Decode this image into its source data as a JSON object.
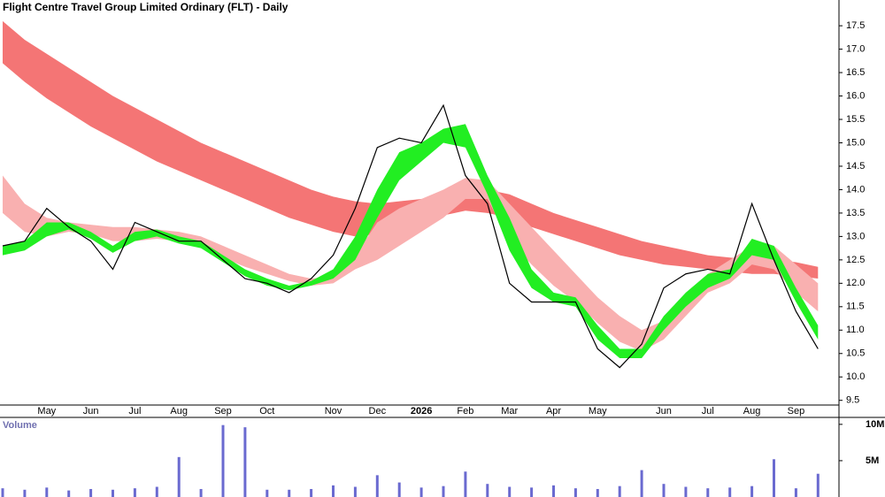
{
  "chart_data": [
    {
      "type": "line",
      "title": "Flight Centre Travel Group Limited Ordinary (FLT) - Daily",
      "categories": [
        null,
        null,
        "May",
        null,
        "Jun",
        null,
        "Jul",
        null,
        "Aug",
        null,
        "Sep",
        null,
        "Oct",
        null,
        null,
        "Nov",
        null,
        "Dec",
        null,
        "2026",
        null,
        "Feb",
        null,
        "Mar",
        null,
        "Apr",
        null,
        "May",
        null,
        null,
        "Jun",
        null,
        "Jul",
        null,
        "Aug",
        null,
        "Sep",
        null
      ],
      "values": [
        12.8,
        12.9,
        13.6,
        13.2,
        12.9,
        12.3,
        13.3,
        13.1,
        12.9,
        12.9,
        12.5,
        12.1,
        12.0,
        11.8,
        12.1,
        12.6,
        13.6,
        14.9,
        15.1,
        15.0,
        15.8,
        14.3,
        13.7,
        12.0,
        11.6,
        11.6,
        11.6,
        10.6,
        10.2,
        10.7,
        11.9,
        12.2,
        12.3,
        12.2,
        13.7,
        12.5,
        11.4,
        10.6
      ],
      "color": "#000000",
      "bands": [
        {
          "color": "#f47575",
          "upper": [
            17.6,
            17.2,
            16.9,
            16.6,
            16.3,
            16.0,
            15.75,
            15.5,
            15.25,
            15.0,
            14.8,
            14.6,
            14.4,
            14.2,
            14.0,
            13.85,
            13.75,
            13.7,
            13.75,
            13.8,
            13.9,
            14.0,
            14.0,
            13.9,
            13.7,
            13.5,
            13.35,
            13.2,
            13.05,
            12.9,
            12.8,
            12.7,
            12.6,
            12.55,
            12.5,
            12.5,
            12.45,
            12.35
          ],
          "lower": [
            16.7,
            16.3,
            15.95,
            15.65,
            15.35,
            15.1,
            14.85,
            14.6,
            14.4,
            14.2,
            14.0,
            13.8,
            13.6,
            13.4,
            13.25,
            13.1,
            13.0,
            13.05,
            13.15,
            13.3,
            13.45,
            13.55,
            13.5,
            13.4,
            13.2,
            13.05,
            12.9,
            12.75,
            12.6,
            12.5,
            12.4,
            12.35,
            12.3,
            12.25,
            12.2,
            12.2,
            12.15,
            12.1
          ]
        },
        {
          "color": "#f9b0b0",
          "upper": [
            14.3,
            13.7,
            13.4,
            13.3,
            13.25,
            13.2,
            13.2,
            13.15,
            13.1,
            13.0,
            12.8,
            12.6,
            12.4,
            12.2,
            12.1,
            12.15,
            12.6,
            13.3,
            13.6,
            13.8,
            14.0,
            14.25,
            14.2,
            13.7,
            13.2,
            12.7,
            12.2,
            11.7,
            11.3,
            11.0,
            11.2,
            11.7,
            12.2,
            12.5,
            12.8,
            12.8,
            12.4,
            12.0
          ],
          "lower": [
            13.5,
            13.1,
            13.0,
            13.1,
            13.05,
            12.9,
            12.9,
            12.95,
            12.9,
            12.75,
            12.55,
            12.35,
            12.2,
            12.05,
            11.95,
            12.0,
            12.3,
            12.5,
            12.8,
            13.1,
            13.4,
            13.8,
            13.8,
            12.9,
            12.4,
            11.95,
            11.6,
            11.15,
            10.75,
            10.55,
            10.8,
            11.3,
            11.8,
            12.0,
            12.4,
            12.3,
            11.8,
            11.4
          ]
        },
        {
          "color": "#22ee22",
          "upper": [
            12.8,
            12.9,
            13.3,
            13.3,
            13.1,
            12.8,
            13.1,
            13.15,
            13.0,
            12.9,
            12.6,
            12.3,
            12.1,
            11.95,
            12.05,
            12.3,
            13.0,
            14.0,
            14.8,
            15.0,
            15.3,
            15.4,
            14.3,
            13.4,
            12.3,
            11.8,
            11.7,
            11.1,
            10.6,
            10.6,
            11.3,
            11.8,
            12.2,
            12.3,
            12.95,
            12.8,
            11.9,
            11.1
          ],
          "lower": [
            12.6,
            12.7,
            13.0,
            13.15,
            12.95,
            12.65,
            12.9,
            13.0,
            12.85,
            12.75,
            12.45,
            12.15,
            11.95,
            11.85,
            11.95,
            12.1,
            12.5,
            13.4,
            14.2,
            14.6,
            15.0,
            14.9,
            13.9,
            12.7,
            11.9,
            11.6,
            11.5,
            10.8,
            10.4,
            10.4,
            11.0,
            11.5,
            11.9,
            12.1,
            12.6,
            12.5,
            11.6,
            10.8
          ]
        }
      ],
      "ylim": [
        9.4,
        18.05
      ],
      "yticks": [
        9.5,
        {
          "value": 10,
          "label": "10.0"
        },
        10.5,
        {
          "value": 11,
          "label": "11.0"
        },
        11.5,
        {
          "value": 12,
          "label": "12.0"
        },
        12.5,
        {
          "value": 13,
          "label": "13.0"
        },
        13.5,
        {
          "value": 14,
          "label": "14.0"
        },
        14.5,
        {
          "value": 15,
          "label": "15.0"
        },
        15.5,
        {
          "value": 16,
          "label": "16.0"
        },
        16.5,
        {
          "value": 17,
          "label": "17.0"
        },
        17.5
      ]
    },
    {
      "type": "bar",
      "title": "Volume",
      "values": [
        1.2,
        1.0,
        1.3,
        0.9,
        1.1,
        1.0,
        1.2,
        1.4,
        5.5,
        1.1,
        9.9,
        9.6,
        1.0,
        1.0,
        1.1,
        1.6,
        1.4,
        3.0,
        2.0,
        1.3,
        1.5,
        3.5,
        1.8,
        1.4,
        1.3,
        1.6,
        1.2,
        1.1,
        1.5,
        3.7,
        1.8,
        1.4,
        1.2,
        1.3,
        1.5,
        5.2,
        1.2,
        3.2
      ],
      "color": "#6a6ad0",
      "ylim": [
        0,
        11.2
      ],
      "yticks": [
        {
          "value": 5,
          "label": "5M"
        },
        {
          "value": 10,
          "label": "10M"
        }
      ]
    }
  ]
}
